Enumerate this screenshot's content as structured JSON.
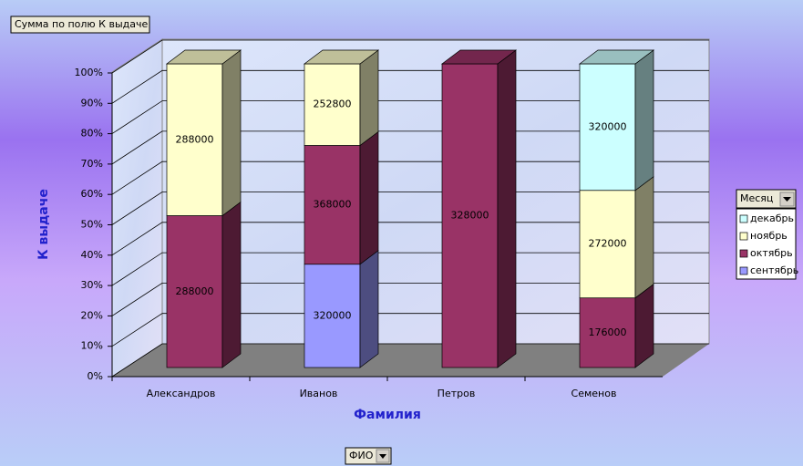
{
  "chart_data": {
    "type": "bar",
    "stacking": "percent",
    "pivot_field": "Сумма по полю К выдаче",
    "ylabel": "К выдаче",
    "xlabel": "Фамилия",
    "x_field": "ФИО",
    "legend_title": "Месяц",
    "legend": "right",
    "categories": [
      "Александров",
      "Иванов",
      "Петров",
      "Семенов"
    ],
    "series": [
      {
        "name": "сентябрь",
        "color": "#9999ff",
        "values": [
          null,
          320000,
          null,
          null
        ]
      },
      {
        "name": "октябрь",
        "color": "#993366",
        "values": [
          288000,
          368000,
          328000,
          176000
        ]
      },
      {
        "name": "ноябрь",
        "color": "#ffffcc",
        "values": [
          288000,
          252800,
          null,
          272000
        ]
      },
      {
        "name": "декабрь",
        "color": "#ccffff",
        "values": [
          null,
          null,
          null,
          320000
        ]
      }
    ],
    "ylim": [
      0,
      100
    ],
    "yticks": [
      {
        "value": 0,
        "label": "0%"
      },
      {
        "value": 10,
        "label": "10%"
      },
      {
        "value": 20,
        "label": "20%"
      },
      {
        "value": 30,
        "label": "30%"
      },
      {
        "value": 40,
        "label": "40%"
      },
      {
        "value": 50,
        "label": "50%"
      },
      {
        "value": 60,
        "label": "60%"
      },
      {
        "value": 70,
        "label": "70%"
      },
      {
        "value": 80,
        "label": "80%"
      },
      {
        "value": 90,
        "label": "90%"
      },
      {
        "value": 100,
        "label": "100%"
      }
    ],
    "grid": true
  }
}
